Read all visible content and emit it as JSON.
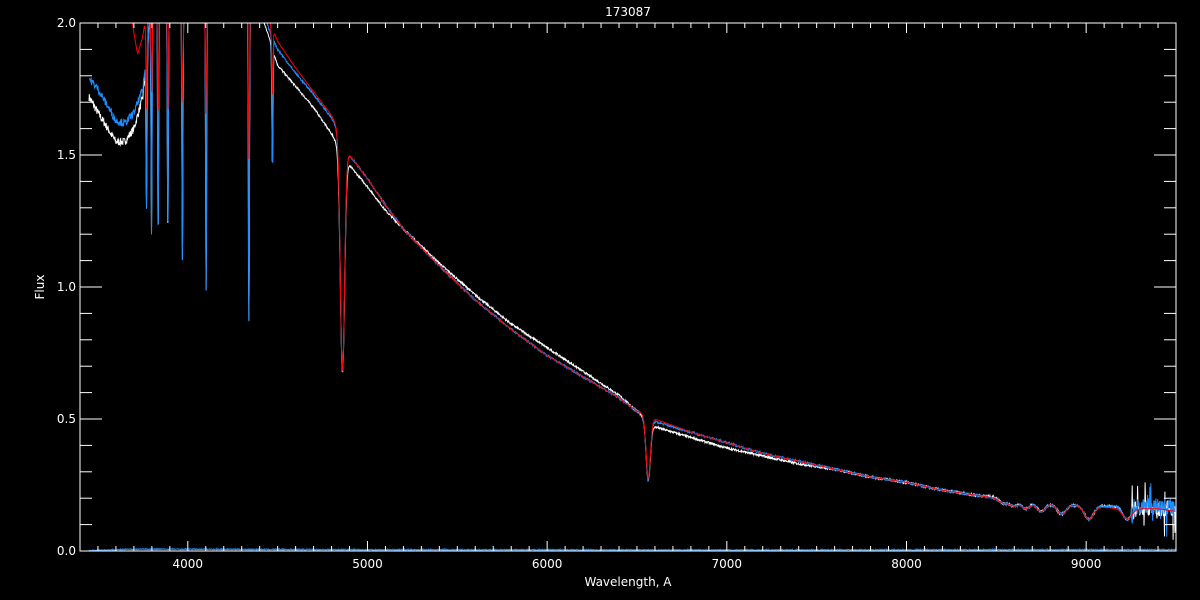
{
  "chart_data": {
    "type": "line",
    "title": "173087",
    "xlabel": "Wavelength, A",
    "ylabel": "Flux",
    "xlim": [
      3400,
      9500
    ],
    "ylim": [
      0.0,
      2.0
    ],
    "x_major_ticks": [
      4000,
      5000,
      6000,
      7000,
      8000,
      9000
    ],
    "x_tick_labels": [
      "4000",
      "5000",
      "6000",
      "7000",
      "8000",
      "9000"
    ],
    "x_minor_step": 100,
    "y_major_ticks": [
      0.0,
      0.5,
      1.0,
      1.5,
      2.0
    ],
    "y_tick_labels": [
      "0.0",
      "0.5",
      "1.0",
      "1.5",
      "2.0"
    ],
    "y_minor_step": 0.1,
    "grid": false,
    "background": "#000000",
    "series": [
      {
        "color": "#ffffff",
        "continuum": [
          [
            3450,
            1.72
          ],
          [
            3500,
            1.66
          ],
          [
            3600,
            1.55
          ],
          [
            3650,
            1.55
          ],
          [
            3700,
            1.6
          ],
          [
            3750,
            1.72
          ],
          [
            3800,
            2.1
          ],
          [
            4400,
            2.05
          ],
          [
            4450,
            1.95
          ],
          [
            4500,
            1.84
          ],
          [
            4600,
            1.76
          ],
          [
            4700,
            1.68
          ],
          [
            4800,
            1.58
          ],
          [
            4850,
            1.52
          ],
          [
            4900,
            1.46
          ],
          [
            5000,
            1.38
          ],
          [
            5100,
            1.29
          ],
          [
            5200,
            1.22
          ],
          [
            5400,
            1.09
          ],
          [
            5600,
            0.97
          ],
          [
            5800,
            0.86
          ],
          [
            6000,
            0.77
          ],
          [
            6200,
            0.68
          ],
          [
            6400,
            0.59
          ],
          [
            6500,
            0.53
          ],
          [
            6600,
            0.47
          ],
          [
            6800,
            0.43
          ],
          [
            7000,
            0.39
          ],
          [
            7200,
            0.36
          ],
          [
            7400,
            0.33
          ],
          [
            7600,
            0.31
          ],
          [
            7800,
            0.28
          ],
          [
            8000,
            0.26
          ],
          [
            8200,
            0.23
          ],
          [
            8400,
            0.21
          ],
          [
            8600,
            0.2
          ],
          [
            8800,
            0.18
          ],
          [
            9000,
            0.17
          ],
          [
            9200,
            0.17
          ],
          [
            9400,
            0.16
          ],
          [
            9500,
            0.16
          ]
        ]
      },
      {
        "color": "#1e8cff",
        "continuum": [
          [
            3450,
            1.79
          ],
          [
            3500,
            1.75
          ],
          [
            3600,
            1.63
          ],
          [
            3650,
            1.62
          ],
          [
            3700,
            1.66
          ],
          [
            3750,
            1.75
          ],
          [
            3800,
            2.1
          ],
          [
            4400,
            2.1
          ],
          [
            4450,
            1.98
          ],
          [
            4500,
            1.9
          ],
          [
            4600,
            1.81
          ],
          [
            4700,
            1.73
          ],
          [
            4800,
            1.64
          ],
          [
            4850,
            1.57
          ],
          [
            4900,
            1.5
          ],
          [
            5000,
            1.41
          ],
          [
            5100,
            1.31
          ],
          [
            5200,
            1.22
          ],
          [
            5400,
            1.08
          ],
          [
            5600,
            0.95
          ],
          [
            5800,
            0.84
          ],
          [
            6000,
            0.74
          ],
          [
            6200,
            0.66
          ],
          [
            6400,
            0.58
          ],
          [
            6500,
            0.53
          ],
          [
            6600,
            0.49
          ],
          [
            6800,
            0.45
          ],
          [
            7000,
            0.41
          ],
          [
            7200,
            0.37
          ],
          [
            7400,
            0.34
          ],
          [
            7600,
            0.31
          ],
          [
            7800,
            0.28
          ],
          [
            8000,
            0.26
          ],
          [
            8200,
            0.23
          ],
          [
            8400,
            0.21
          ],
          [
            8600,
            0.19
          ],
          [
            8800,
            0.18
          ],
          [
            9000,
            0.17
          ],
          [
            9200,
            0.17
          ],
          [
            9400,
            0.17
          ],
          [
            9500,
            0.17
          ]
        ]
      },
      {
        "color": "#ff0000",
        "continuum": [
          [
            3680,
            2.05
          ],
          [
            3720,
            1.88
          ],
          [
            3750,
            1.95
          ],
          [
            3780,
            2.1
          ],
          [
            4400,
            2.1
          ],
          [
            4450,
            2.02
          ],
          [
            4500,
            1.93
          ],
          [
            4600,
            1.83
          ],
          [
            4700,
            1.74
          ],
          [
            4800,
            1.65
          ],
          [
            4850,
            1.58
          ],
          [
            4900,
            1.5
          ],
          [
            5000,
            1.41
          ],
          [
            5100,
            1.31
          ],
          [
            5200,
            1.22
          ],
          [
            5400,
            1.08
          ],
          [
            5600,
            0.95
          ],
          [
            5800,
            0.84
          ],
          [
            6000,
            0.74
          ],
          [
            6200,
            0.66
          ],
          [
            6400,
            0.58
          ],
          [
            6500,
            0.53
          ],
          [
            6600,
            0.5
          ],
          [
            6800,
            0.45
          ],
          [
            7000,
            0.41
          ],
          [
            7200,
            0.37
          ],
          [
            7400,
            0.34
          ],
          [
            7600,
            0.31
          ],
          [
            7800,
            0.28
          ],
          [
            8000,
            0.26
          ],
          [
            8200,
            0.23
          ],
          [
            8400,
            0.21
          ],
          [
            8600,
            0.19
          ],
          [
            8800,
            0.18
          ],
          [
            9000,
            0.17
          ],
          [
            9200,
            0.16
          ],
          [
            9400,
            0.16
          ],
          [
            9500,
            0.15
          ]
        ]
      },
      {
        "color": "#1e8cff",
        "continuum": [
          [
            3450,
            0.0
          ],
          [
            3700,
            0.005
          ],
          [
            4000,
            0.005
          ],
          [
            5000,
            0.003
          ],
          [
            7000,
            0.002
          ],
          [
            9000,
            0.003
          ],
          [
            9500,
            0.003
          ]
        ]
      }
    ],
    "absorption_lines": [
      {
        "wavelength": 3770,
        "min_flux": 1.3
      },
      {
        "wavelength": 3798,
        "min_flux": 1.2
      },
      {
        "wavelength": 3835,
        "min_flux": 1.19
      },
      {
        "wavelength": 3889,
        "min_flux": 1.2
      },
      {
        "wavelength": 3970,
        "min_flux": 1.1
      },
      {
        "wavelength": 4102,
        "min_flux": 0.99
      },
      {
        "wavelength": 4340,
        "min_flux": 0.87
      },
      {
        "wavelength": 4471,
        "min_flux": 1.45
      },
      {
        "wavelength": 4861,
        "min_flux": 0.68
      },
      {
        "wavelength": 6563,
        "min_flux": 0.27
      },
      {
        "wavelength": 8545,
        "min_flux": 0.18
      },
      {
        "wavelength": 8598,
        "min_flux": 0.17
      },
      {
        "wavelength": 8665,
        "min_flux": 0.16
      },
      {
        "wavelength": 8750,
        "min_flux": 0.15
      },
      {
        "wavelength": 8863,
        "min_flux": 0.14
      },
      {
        "wavelength": 9015,
        "min_flux": 0.12
      },
      {
        "wavelength": 9229,
        "min_flux": 0.12
      }
    ]
  }
}
